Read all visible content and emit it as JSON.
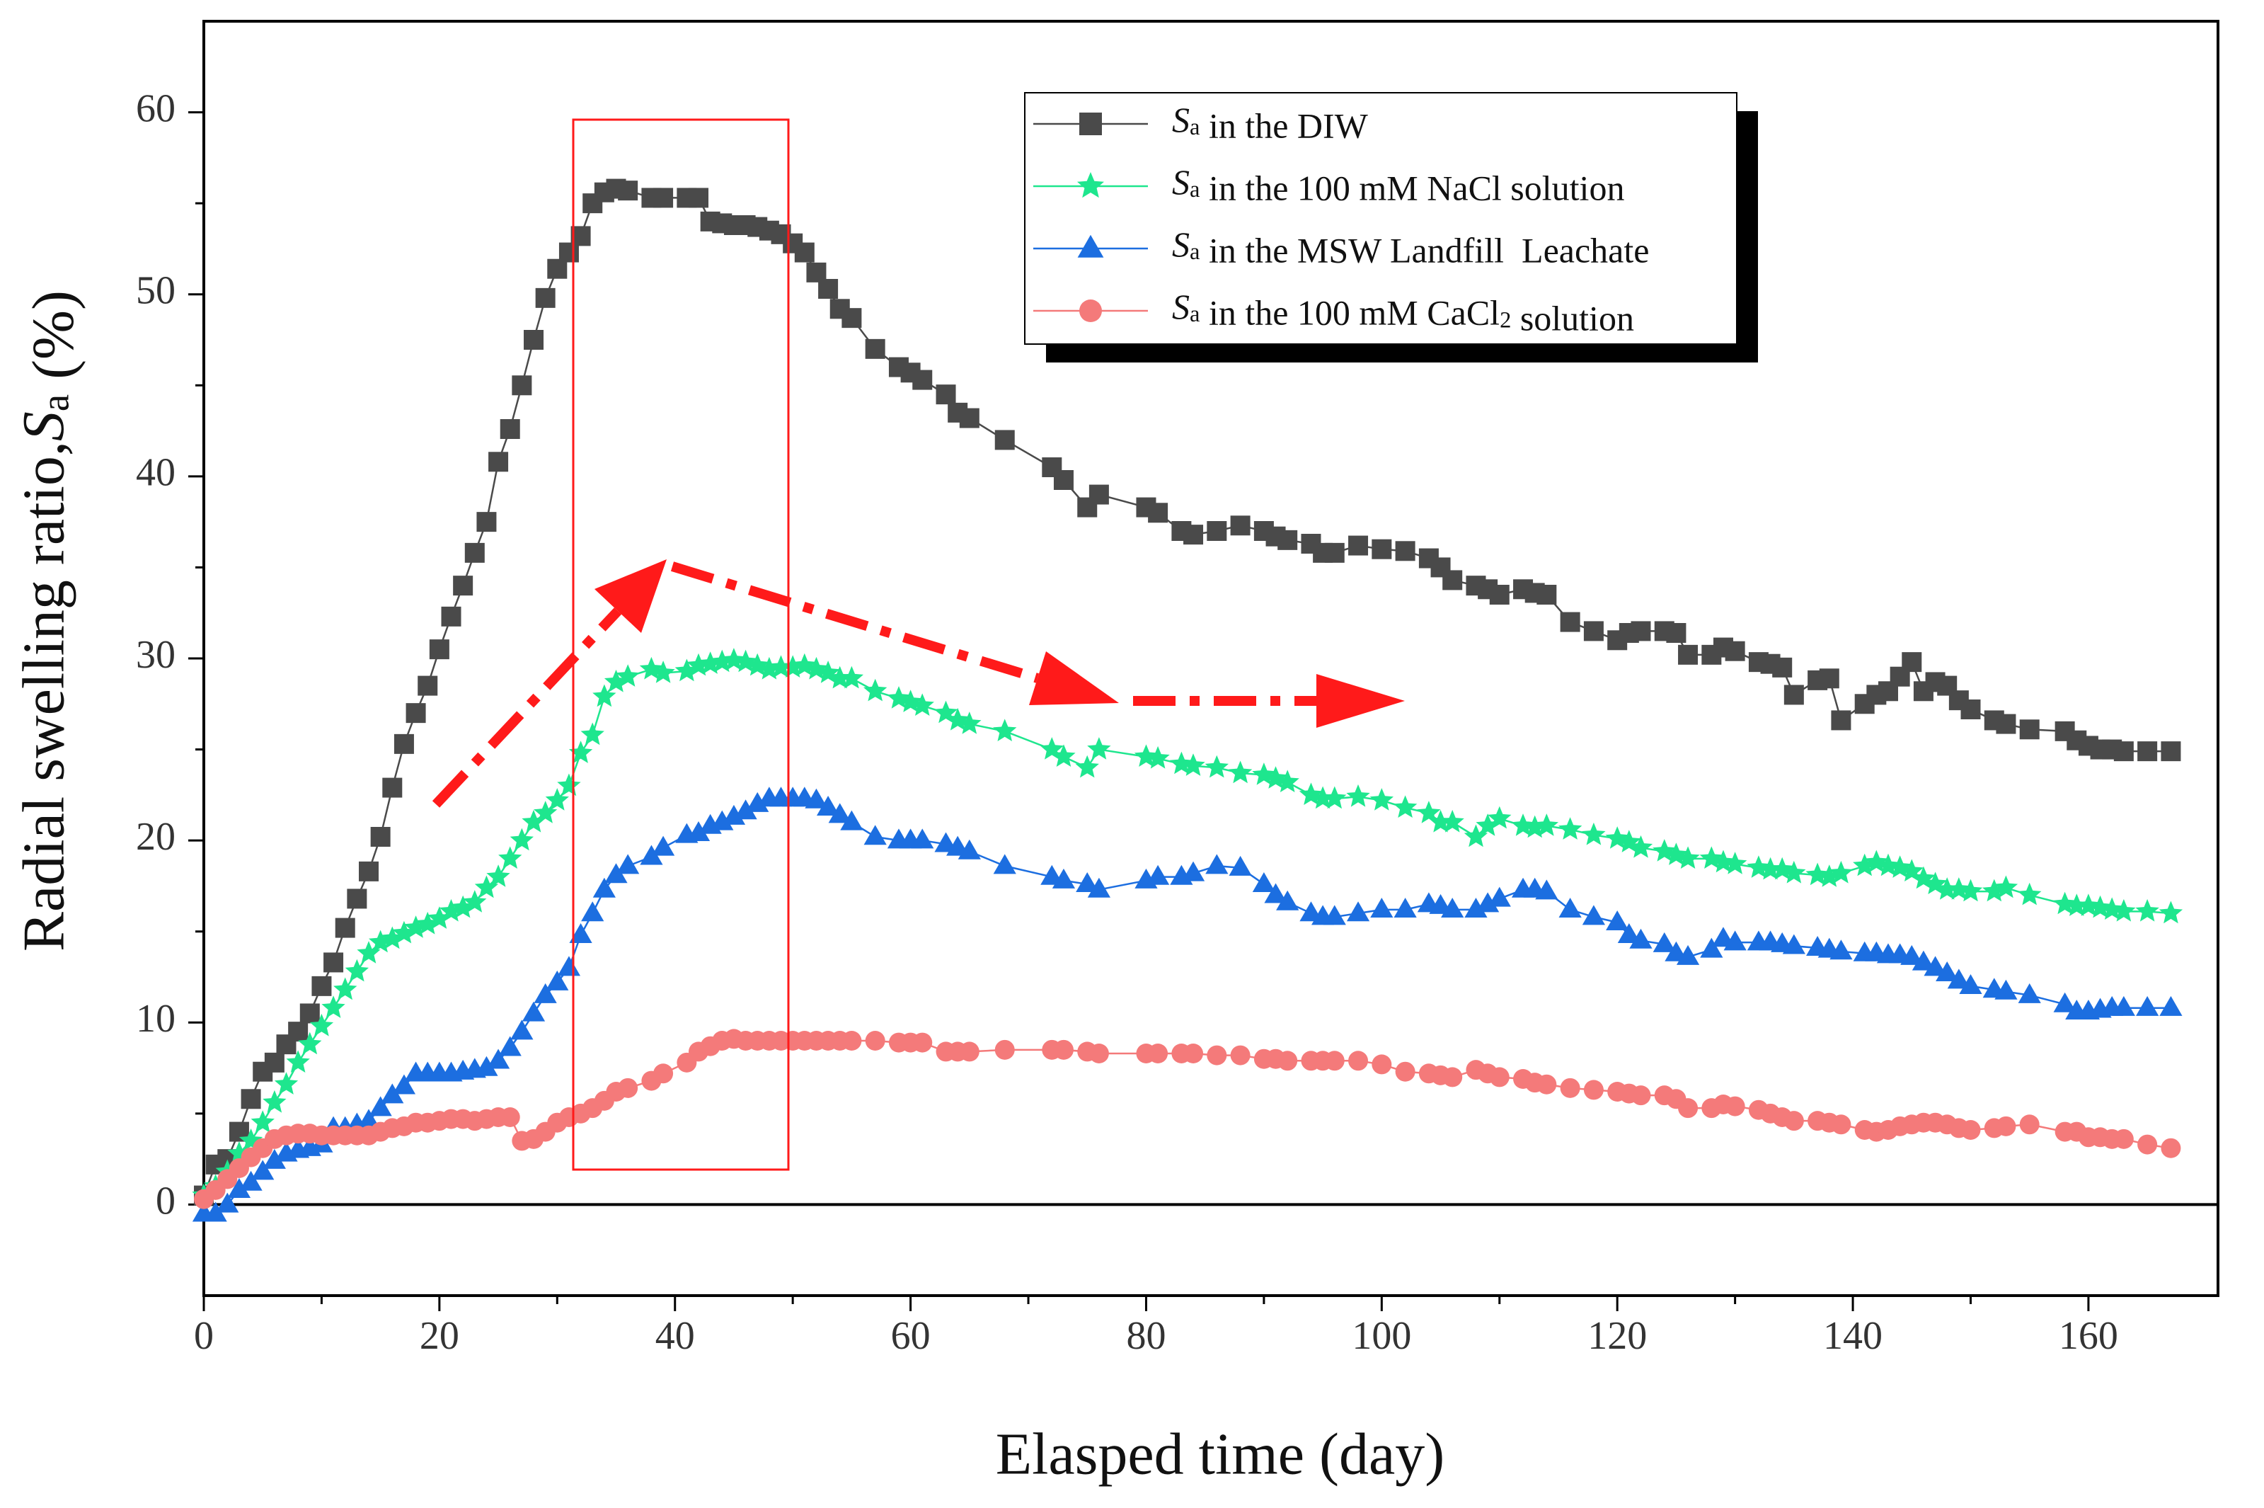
{
  "chart_data": {
    "type": "line",
    "x_label": "Elasped time (day)",
    "y_label": "Radial swelling ratio,Sa (%)",
    "xlim": [
      0,
      171
    ],
    "xticks": [
      0,
      20,
      40,
      60,
      80,
      100,
      120,
      140,
      160
    ],
    "ylim": [
      -5,
      65
    ],
    "yticks": [
      0,
      10,
      20,
      30,
      40,
      50,
      60
    ],
    "legend": "upper right",
    "x": [
      0,
      1,
      2,
      3,
      4,
      5,
      6,
      7,
      8,
      9,
      10,
      11,
      12,
      13,
      14,
      15,
      16,
      17,
      18,
      19,
      20,
      21,
      22,
      23,
      24,
      25,
      26,
      27,
      28,
      29,
      30,
      31,
      32,
      33,
      34,
      35,
      36,
      38,
      39,
      41,
      42,
      43,
      44,
      45,
      46,
      47,
      48,
      49,
      50,
      51,
      52,
      53,
      54,
      55,
      57,
      59,
      60,
      61,
      63,
      64,
      65,
      68,
      72,
      73,
      75,
      76,
      80,
      81,
      83,
      84,
      86,
      88,
      90,
      91,
      92,
      94,
      95,
      96,
      98,
      100,
      102,
      104,
      105,
      106,
      108,
      109,
      110,
      112,
      113,
      114,
      116,
      118,
      120,
      121,
      122,
      124,
      125,
      126,
      128,
      129,
      130,
      132,
      133,
      134,
      135,
      137,
      138,
      139,
      141,
      142,
      143,
      144,
      145,
      146,
      147,
      148,
      149,
      150,
      152,
      153,
      155,
      158,
      159,
      160,
      161,
      162,
      163,
      165,
      167
    ],
    "series": [
      {
        "name": "Sa in the DIW",
        "color": "#4a4a4a",
        "marker": "square",
        "values": [
          0.5,
          2.2,
          2.5,
          4,
          5.8,
          7.3,
          7.8,
          8.8,
          9.5,
          10.5,
          12,
          13.3,
          15.2,
          16.8,
          18.3,
          20.2,
          22.9,
          25.3,
          27,
          28.5,
          30.5,
          32.3,
          34,
          35.8,
          37.5,
          40.8,
          42.6,
          45,
          47.5,
          49.8,
          51.4,
          52.3,
          53.2,
          55,
          55.6,
          55.8,
          55.7,
          55.3,
          55.3,
          55.3,
          55.3,
          54,
          53.9,
          53.8,
          53.8,
          53.7,
          53.5,
          53.3,
          52.8,
          52.3,
          51.2,
          50.3,
          49.2,
          48.7,
          47,
          46,
          45.7,
          45.3,
          44.5,
          43.5,
          43.2,
          42,
          40.5,
          39.8,
          38.3,
          39,
          38.3,
          38,
          37,
          36.8,
          37,
          37.3,
          37,
          36.7,
          36.5,
          36.3,
          35.8,
          35.8,
          36.2,
          36,
          35.9,
          35.5,
          35,
          34.3,
          34,
          33.8,
          33.5,
          33.8,
          33.6,
          33.5,
          32,
          31.5,
          31,
          31.4,
          31.5,
          31.5,
          31.4,
          30.2,
          30.2,
          30.6,
          30.4,
          29.8,
          29.7,
          29.5,
          28,
          28.8,
          28.9,
          26.6,
          27.5,
          28,
          28.2,
          29,
          29.8,
          28.2,
          28.7,
          28.5,
          27.7,
          27.2,
          26.6,
          26.4,
          26.1,
          26,
          25.5,
          25.2,
          25,
          25,
          24.9,
          24.9,
          24.9
        ]
      },
      {
        "name": "Sa in the 100 mM NaCl solution",
        "color": "#1ee68e",
        "marker": "star",
        "values": [
          0.5,
          1,
          1.8,
          2.8,
          3.5,
          4.5,
          5.6,
          6.6,
          7.8,
          8.8,
          9.8,
          10.8,
          11.8,
          12.8,
          13.8,
          14.4,
          14.6,
          14.9,
          15.2,
          15.4,
          15.7,
          16.1,
          16.3,
          16.6,
          17.4,
          18,
          19,
          20,
          21,
          21.5,
          22.2,
          23,
          24.8,
          25.8,
          27.9,
          28.7,
          29,
          29.4,
          29.2,
          29.3,
          29.6,
          29.7,
          29.8,
          29.9,
          29.8,
          29.6,
          29.4,
          29.5,
          29.5,
          29.6,
          29.4,
          29.2,
          28.9,
          28.9,
          28.2,
          27.8,
          27.6,
          27.4,
          27,
          26.6,
          26.4,
          26,
          25,
          24.6,
          24,
          25,
          24.6,
          24.5,
          24.2,
          24.1,
          24,
          23.7,
          23.6,
          23.4,
          23.2,
          22.5,
          22.3,
          22.3,
          22.4,
          22.2,
          21.8,
          21.5,
          21,
          21,
          20.2,
          20.8,
          21.2,
          20.8,
          20.7,
          20.8,
          20.6,
          20.3,
          20.1,
          19.9,
          19.6,
          19.4,
          19.2,
          19,
          19,
          18.8,
          18.7,
          18.5,
          18.4,
          18.4,
          18.2,
          18.1,
          18,
          18.2,
          18.6,
          18.8,
          18.6,
          18.5,
          18.3,
          17.9,
          17.6,
          17.3,
          17.3,
          17.2,
          17.2,
          17.4,
          17,
          16.5,
          16.4,
          16.4,
          16.3,
          16.2,
          16.1,
          16.1,
          16
        ]
      },
      {
        "name": "Sa in the MSW Landfill  Leachate",
        "color": "#1c6ee0",
        "marker": "triangle",
        "values": [
          -0.5,
          -0.5,
          0,
          0.8,
          1.2,
          1.8,
          2.4,
          2.8,
          3,
          3.1,
          3.3,
          4.2,
          4.2,
          4.4,
          4.6,
          5.3,
          6,
          6.5,
          7.2,
          7.2,
          7.2,
          7.2,
          7.3,
          7.4,
          7.5,
          7.9,
          8.6,
          9.5,
          10.5,
          11.5,
          12.2,
          13,
          14.8,
          16,
          17.3,
          18.1,
          18.6,
          19.1,
          19.6,
          20.3,
          20.4,
          20.8,
          21,
          21.3,
          21.6,
          22,
          22.3,
          22.3,
          22.3,
          22.3,
          22.2,
          21.8,
          21.4,
          21,
          20.2,
          20,
          20,
          20,
          19.8,
          19.6,
          19.4,
          18.6,
          18,
          17.8,
          17.6,
          17.3,
          17.8,
          18,
          18,
          18.2,
          18.6,
          18.5,
          17.6,
          17,
          16.6,
          16,
          15.8,
          15.8,
          16,
          16.2,
          16.2,
          16.5,
          16.4,
          16.2,
          16.2,
          16.5,
          16.8,
          17.3,
          17.3,
          17.2,
          16.2,
          15.8,
          15.5,
          14.8,
          14.5,
          14.3,
          13.8,
          13.6,
          14,
          14.6,
          14.4,
          14.4,
          14.4,
          14.3,
          14.2,
          14.1,
          14,
          13.9,
          13.8,
          13.8,
          13.7,
          13.7,
          13.6,
          13.3,
          13,
          12.7,
          12.3,
          12,
          11.8,
          11.7,
          11.5,
          11,
          10.6,
          10.6,
          10.7,
          10.8,
          10.8,
          10.8,
          10.8
        ]
      },
      {
        "name": "Sa in the 100 mM CaCl2 solution",
        "color": "#f47a7a",
        "marker": "circle",
        "values": [
          0.3,
          0.8,
          1.4,
          2,
          2.6,
          3.1,
          3.6,
          3.8,
          3.9,
          3.9,
          3.8,
          3.8,
          3.8,
          3.8,
          3.8,
          4,
          4.2,
          4.3,
          4.5,
          4.5,
          4.6,
          4.7,
          4.7,
          4.6,
          4.7,
          4.8,
          4.8,
          3.5,
          3.6,
          4,
          4.5,
          4.8,
          5,
          5.3,
          5.7,
          6.2,
          6.4,
          6.8,
          7.2,
          7.8,
          8.4,
          8.7,
          9,
          9.1,
          9,
          9,
          9,
          9,
          9,
          9,
          9,
          9,
          9,
          9,
          9,
          8.9,
          8.9,
          8.9,
          8.4,
          8.4,
          8.4,
          8.5,
          8.5,
          8.5,
          8.4,
          8.3,
          8.3,
          8.3,
          8.3,
          8.3,
          8.2,
          8.2,
          8,
          8,
          7.9,
          7.9,
          7.9,
          7.9,
          7.9,
          7.7,
          7.3,
          7.2,
          7.1,
          7,
          7.4,
          7.2,
          7,
          6.9,
          6.7,
          6.6,
          6.4,
          6.3,
          6.2,
          6.1,
          6,
          6,
          5.8,
          5.3,
          5.3,
          5.5,
          5.4,
          5.2,
          5,
          4.8,
          4.6,
          4.6,
          4.5,
          4.4,
          4.1,
          4,
          4.1,
          4.3,
          4.4,
          4.5,
          4.5,
          4.4,
          4.2,
          4.1,
          4.2,
          4.3,
          4.4,
          4,
          4,
          3.7,
          3.7,
          3.6,
          3.6,
          3.3,
          3.1
        ]
      }
    ]
  }
}
